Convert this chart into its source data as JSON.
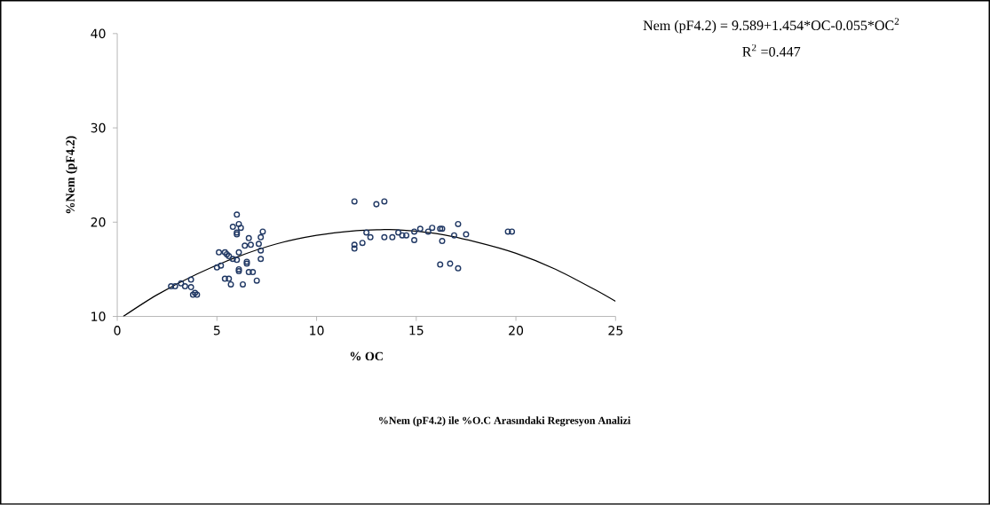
{
  "chart_data": {
    "type": "scatter",
    "title": "%Nem (pF4.2) ile %O.C Arasındaki Regresyon Analizi",
    "xlabel": "% OC",
    "ylabel": "%Nem (pF4.2)",
    "annotations": [
      "Nem (pF4.2) = 9.589+1.454*OC-0.055*OC$^{2}$",
      "R$^{2}$ =0.447"
    ],
    "xlim": [
      0,
      25
    ],
    "ylim": [
      10,
      40
    ],
    "xticks": [
      0,
      5,
      10,
      15,
      20,
      25
    ],
    "yticks": [
      10,
      20,
      30,
      40
    ],
    "grid": false,
    "series": [
      {
        "marker": "circle",
        "color": "#203864",
        "x": [
          2.7,
          2.9,
          3.2,
          3.7,
          3.4,
          3.7,
          3.8,
          4.0,
          3.9,
          5.1,
          5.0,
          5.2,
          5.4,
          5.5,
          5.6,
          5.8,
          6.0,
          6.1,
          6.0,
          5.8,
          6.1,
          6.2,
          6.0,
          6.0,
          5.4,
          5.6,
          5.7,
          6.1,
          6.1,
          6.3,
          6.5,
          6.5,
          6.6,
          6.8,
          6.4,
          6.6,
          6.7,
          7.0,
          7.1,
          7.2,
          7.2,
          7.3,
          7.2,
          11.9,
          13.0,
          13.4,
          11.9,
          11.9,
          12.3,
          12.5,
          12.7,
          13.4,
          13.8,
          14.1,
          14.3,
          14.5,
          14.9,
          14.9,
          15.2,
          15.6,
          15.8,
          16.2,
          16.3,
          16.3,
          16.9,
          17.1,
          17.5,
          16.2,
          16.7,
          17.1,
          19.6,
          19.8
        ],
        "values": [
          13.2,
          13.2,
          13.5,
          13.9,
          13.2,
          13.1,
          12.3,
          12.3,
          12.5,
          16.8,
          15.2,
          15.4,
          16.8,
          16.6,
          16.4,
          16.1,
          16.0,
          16.8,
          20.8,
          19.5,
          19.8,
          19.4,
          18.7,
          18.9,
          14.0,
          14.0,
          13.4,
          15.0,
          14.8,
          13.4,
          15.8,
          15.6,
          14.7,
          14.7,
          17.5,
          18.3,
          17.6,
          13.8,
          17.7,
          17.0,
          16.1,
          19.0,
          18.4,
          22.2,
          21.9,
          22.2,
          17.6,
          17.2,
          17.8,
          18.9,
          18.4,
          18.4,
          18.4,
          18.9,
          18.6,
          18.6,
          19.0,
          18.1,
          19.3,
          19.0,
          19.4,
          19.3,
          19.3,
          18.0,
          18.6,
          19.8,
          18.7,
          15.5,
          15.6,
          15.1,
          19.0,
          19.0
        ]
      },
      {
        "type": "line",
        "marker": "none",
        "line_style": "solid",
        "color": "#000000",
        "x": [
          0.3,
          2,
          4,
          6,
          8,
          10,
          12,
          13.2,
          14,
          16,
          18,
          20,
          22,
          24,
          25
        ],
        "values": [
          10.0,
          12.3,
          14.5,
          16.3,
          17.7,
          18.6,
          19.1,
          19.2,
          19.2,
          18.8,
          17.9,
          16.7,
          15.0,
          12.8,
          11.6
        ]
      }
    ]
  }
}
